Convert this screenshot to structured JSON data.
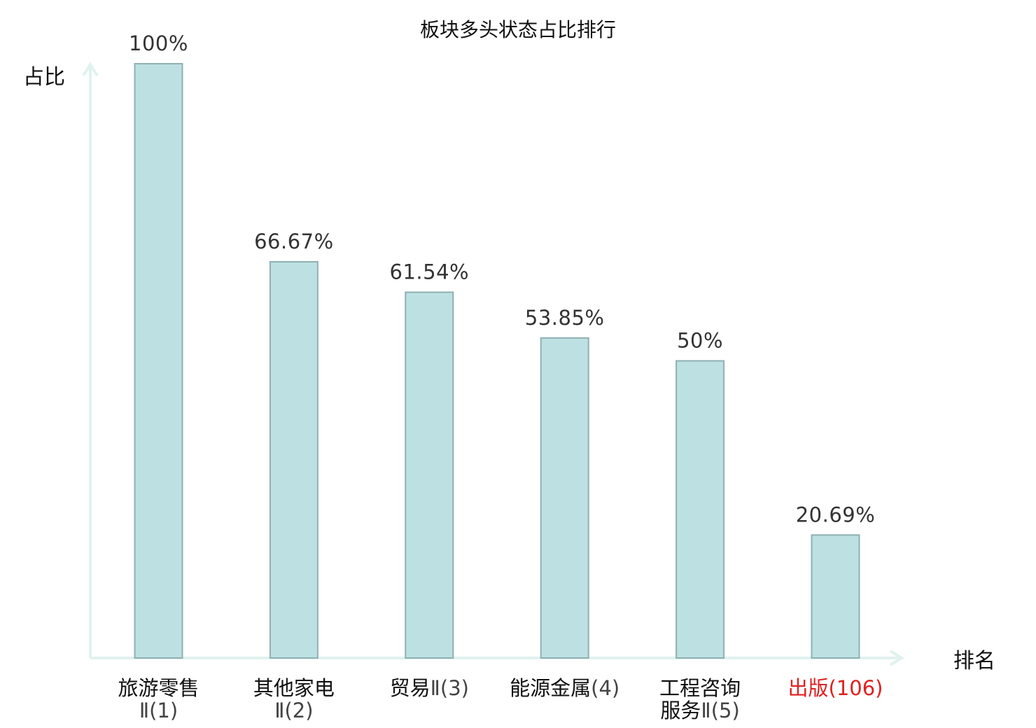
{
  "chart_data": {
    "type": "bar",
    "title": "板块多头状态占比排行",
    "xlabel": "排名",
    "ylabel": "占比",
    "ylim": [
      0,
      100
    ],
    "grid": false,
    "categories": [
      {
        "name": "旅游零售",
        "rank": "Ⅱ(1)",
        "highlight": false
      },
      {
        "name": "其他家电",
        "rank": "Ⅱ(2)",
        "highlight": false
      },
      {
        "name": "贸易",
        "rank": "Ⅱ(3)",
        "highlight": false
      },
      {
        "name": "能源金属",
        "rank": "(4)",
        "highlight": false
      },
      {
        "name": "工程咨询服务",
        "rank": "Ⅱ(5)",
        "highlight": false
      },
      {
        "name": "出版",
        "rank": "(106)",
        "highlight": true
      }
    ],
    "values": [
      100,
      66.67,
      61.54,
      53.85,
      50,
      20.69
    ],
    "value_labels": [
      "100%",
      "66.67%",
      "61.54%",
      "53.85%",
      "50%",
      "20.69%"
    ]
  },
  "colors": {
    "bar_fill": "#bde0e3",
    "bar_stroke": "#8fb0b3",
    "axis": "#e0f2f0",
    "highlight_text": "#e02020",
    "category_name": "#111111",
    "category_rank": "#444444"
  }
}
